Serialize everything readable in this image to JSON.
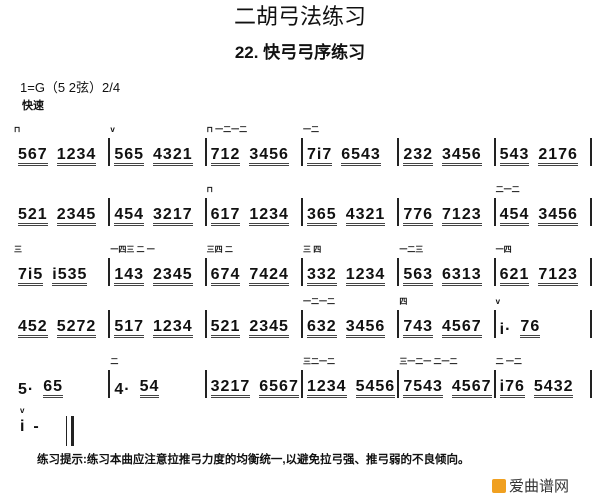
{
  "title": "二胡弓法练习",
  "subtitle": "22. 快弓弓序练习",
  "key": "1=G（5 2弦）2/4",
  "tempo": "快速",
  "rows": [
    [
      {
        "a": "⊓",
        "g": [
          "567",
          "1234"
        ]
      },
      {
        "a": "v",
        "g": [
          "565",
          "4321"
        ]
      },
      {
        "a": "⊓  一二一二",
        "g": [
          "712",
          "3456"
        ]
      },
      {
        "a": "一二",
        "g": [
          "7i7",
          "6543"
        ]
      },
      {
        "a": "",
        "g": [
          "232",
          "3456"
        ]
      },
      {
        "a": "",
        "g": [
          "543",
          "2176"
        ]
      }
    ],
    [
      {
        "a": "",
        "g": [
          "521",
          "2345"
        ]
      },
      {
        "a": "",
        "g": [
          "454",
          "3217"
        ]
      },
      {
        "a": "⊓",
        "g": [
          "617",
          "1234"
        ]
      },
      {
        "a": "",
        "g": [
          "365",
          "4321"
        ]
      },
      {
        "a": "",
        "g": [
          "776",
          "7123"
        ]
      },
      {
        "a": "二一二",
        "g": [
          "454",
          "3456"
        ]
      }
    ],
    [
      {
        "a": "三",
        "g": [
          "7i5",
          "i535"
        ]
      },
      {
        "a": "一四三 二 一",
        "g": [
          "143",
          "2345"
        ]
      },
      {
        "a": "三四 二",
        "g": [
          "674",
          "7424"
        ]
      },
      {
        "a": "三 四",
        "g": [
          "332",
          "1234"
        ]
      },
      {
        "a": "一二三",
        "g": [
          "563",
          "6313"
        ]
      },
      {
        "a": "一四",
        "g": [
          "621",
          "7123"
        ]
      }
    ],
    [
      {
        "a": "",
        "g": [
          "452",
          "5272"
        ]
      },
      {
        "a": "",
        "g": [
          "517",
          "1234"
        ]
      },
      {
        "a": "",
        "g": [
          "521",
          "2345"
        ]
      },
      {
        "a": "一二一二",
        "g": [
          "632",
          "3456"
        ]
      },
      {
        "a": "四",
        "g": [
          "743",
          "4567"
        ]
      },
      {
        "a": "v",
        "g": [
          "i·",
          "76"
        ]
      }
    ],
    [
      {
        "a": "",
        "g": [
          "5·",
          "65"
        ]
      },
      {
        "a": "二",
        "g": [
          "4·",
          "54"
        ]
      },
      {
        "a": "",
        "g": [
          "3217",
          "6567"
        ]
      },
      {
        "a": "三二一二",
        "g": [
          "1234",
          "5456"
        ]
      },
      {
        "a": "三一二一 二一二",
        "g": [
          "7543",
          "4567"
        ]
      },
      {
        "a": "二 一二",
        "g": [
          "i76",
          "5432"
        ]
      }
    ]
  ],
  "last": {
    "a": "v",
    "notes": "i  -"
  },
  "hint": "练习提示:练习本曲应注意拉推弓力度的均衡统一,以避免拉弓强、推弓弱的不良倾向。",
  "watermark": "爱曲谱网"
}
